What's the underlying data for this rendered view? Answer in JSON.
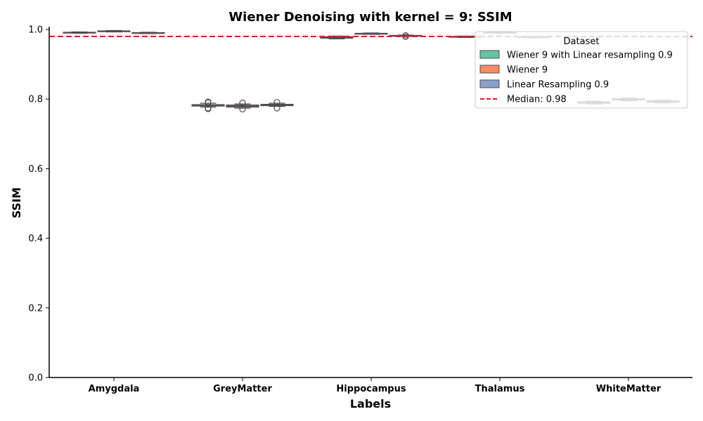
{
  "chart_data": {
    "type": "box",
    "title": "Wiener Denoising with kernel = 9: SSIM",
    "xlabel": "Labels",
    "ylabel": "SSIM",
    "ylim": [
      0.0,
      1.0
    ],
    "yticks": [
      "0.0",
      "0.2",
      "0.4",
      "0.6",
      "0.8",
      "1.0"
    ],
    "categories": [
      "Amygdala",
      "GreyMatter",
      "Hippocampus",
      "Thalamus",
      "WhiteMatter"
    ],
    "series": [
      {
        "name": "Wiener 9 with Linear resampling 0.9",
        "color": "#66c2a5",
        "boxes": [
          {
            "q1": 0.99,
            "median": 0.991,
            "q3": 0.992,
            "whislo": 0.989,
            "whishi": 0.993,
            "fliers": []
          },
          {
            "q1": 0.78,
            "median": 0.782,
            "q3": 0.784,
            "whislo": 0.777,
            "whishi": 0.788,
            "fliers": [
              0.772,
              0.774,
              0.79,
              0.792
            ]
          },
          {
            "q1": 0.975,
            "median": 0.977,
            "q3": 0.979,
            "whislo": 0.973,
            "whishi": 0.981,
            "fliers": []
          },
          {
            "q1": 0.978,
            "median": 0.979,
            "q3": 0.98,
            "whislo": 0.977,
            "whishi": 0.981,
            "fliers": []
          },
          {
            "q1": 0.788,
            "median": 0.79,
            "q3": 0.792,
            "whislo": 0.786,
            "whishi": 0.794,
            "fliers": []
          }
        ]
      },
      {
        "name": "Wiener 9",
        "color": "#fc8d62",
        "boxes": [
          {
            "q1": 0.994,
            "median": 0.995,
            "q3": 0.996,
            "whislo": 0.993,
            "whishi": 0.997,
            "fliers": []
          },
          {
            "q1": 0.777,
            "median": 0.78,
            "q3": 0.783,
            "whislo": 0.774,
            "whishi": 0.786,
            "fliers": [
              0.771,
              0.789
            ]
          },
          {
            "q1": 0.987,
            "median": 0.988,
            "q3": 0.989,
            "whislo": 0.986,
            "whishi": 0.99,
            "fliers": []
          },
          {
            "q1": 0.99,
            "median": 0.991,
            "q3": 0.992,
            "whislo": 0.989,
            "whishi": 0.993,
            "fliers": []
          },
          {
            "q1": 0.797,
            "median": 0.799,
            "q3": 0.801,
            "whislo": 0.795,
            "whishi": 0.803,
            "fliers": []
          }
        ]
      },
      {
        "name": "Linear Resampling 0.9",
        "color": "#8da0cb",
        "boxes": [
          {
            "q1": 0.989,
            "median": 0.99,
            "q3": 0.991,
            "whislo": 0.988,
            "whishi": 0.992,
            "fliers": []
          },
          {
            "q1": 0.781,
            "median": 0.783,
            "q3": 0.785,
            "whislo": 0.779,
            "whishi": 0.788,
            "fliers": [
              0.774,
              0.791
            ]
          },
          {
            "q1": 0.981,
            "median": 0.982,
            "q3": 0.983,
            "whislo": 0.98,
            "whishi": 0.984,
            "fliers": [
              0.979,
              0.983
            ]
          },
          {
            "q1": 0.977,
            "median": 0.978,
            "q3": 0.979,
            "whislo": 0.976,
            "whishi": 0.98,
            "fliers": []
          },
          {
            "q1": 0.791,
            "median": 0.793,
            "q3": 0.795,
            "whislo": 0.789,
            "whishi": 0.797,
            "fliers": []
          }
        ]
      }
    ],
    "median_line": {
      "value": 0.98,
      "label": "Median: 0.98",
      "color": "#d62728"
    },
    "legend": {
      "title": "Dataset",
      "placement": "top-right"
    },
    "grid": false
  }
}
